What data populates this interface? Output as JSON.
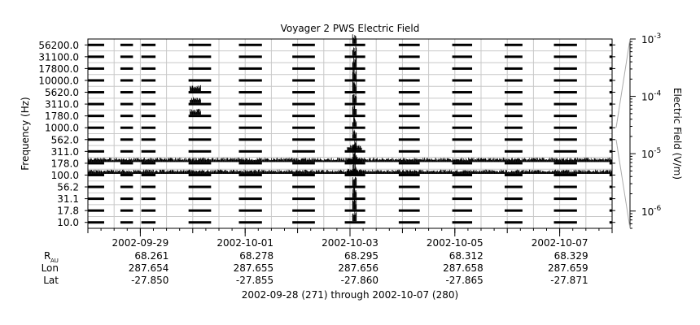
{
  "chart_data": {
    "type": "heatmap",
    "title": "Voyager 2 PWS Electric Field",
    "ylabel": "Frequency (Hz)",
    "colorbar_label": "Electric Field (V/m)",
    "colorbar_scale": "log",
    "colorbar_range": [
      5e-07,
      0.001
    ],
    "colorbar_ticks": [
      {
        "value": 0.001,
        "mant": "10",
        "exp": "-3"
      },
      {
        "value": 0.0001,
        "mant": "10",
        "exp": "-4"
      },
      {
        "value": 1e-05,
        "mant": "10",
        "exp": "-5"
      },
      {
        "value": 1e-06,
        "mant": "10",
        "exp": "-6"
      }
    ],
    "frequency_channels": [
      "10.0",
      "17.8",
      "31.1",
      "56.2",
      "100.0",
      "178.0",
      "311.0",
      "562.0",
      "1000.0",
      "1780.0",
      "3110.0",
      "5620.0",
      "10000.0",
      "17800.0",
      "31100.0",
      "56200.0"
    ],
    "x_range_days": [
      271,
      281
    ],
    "x_major_ticks": [
      {
        "day": 272,
        "label": "2002-09-29"
      },
      {
        "day": 274,
        "label": "2002-10-01"
      },
      {
        "day": 276,
        "label": "2002-10-03"
      },
      {
        "day": 278,
        "label": "2002-10-05"
      },
      {
        "day": 280,
        "label": "2002-10-07"
      }
    ],
    "data_segments_days": [
      [
        271.0,
        271.31
      ],
      [
        271.62,
        271.86
      ],
      [
        272.02,
        272.29
      ],
      [
        272.92,
        273.35
      ],
      [
        273.88,
        274.32
      ],
      [
        274.9,
        275.33
      ],
      [
        275.9,
        276.29
      ],
      [
        276.93,
        277.33
      ],
      [
        277.95,
        278.33
      ],
      [
        278.95,
        279.29
      ],
      [
        279.89,
        280.33
      ],
      [
        280.95,
        281.0
      ]
    ],
    "activity": [
      {
        "day_start": 276.05,
        "day_end": 276.12,
        "freq_from": "10.0",
        "freq_to": "56200.0",
        "level": 0.0008
      },
      {
        "day_start": 272.95,
        "day_end": 273.15,
        "freq_from": "1780.0",
        "freq_to": "5620.0",
        "level": 2e-05
      },
      {
        "day_start": 275.95,
        "day_end": 276.22,
        "freq_from": "100.0",
        "freq_to": "311.0",
        "level": 1e-05
      },
      {
        "day_start": 271.0,
        "day_end": 281.0,
        "freq_from": "100.0",
        "freq_to": "178.0",
        "level": 5e-06
      }
    ],
    "ephemeris_labels": [
      "R",
      "AU",
      "Lon",
      "Lat"
    ],
    "ephemeris": [
      {
        "R": "68.261",
        "Lon": "287.654",
        "Lat": "-27.850"
      },
      {
        "R": "68.278",
        "Lon": "287.655",
        "Lat": "-27.855"
      },
      {
        "R": "68.295",
        "Lon": "287.656",
        "Lat": "-27.860"
      },
      {
        "R": "68.312",
        "Lon": "287.658",
        "Lat": "-27.865"
      },
      {
        "R": "68.329",
        "Lon": "287.659",
        "Lat": "-27.871"
      }
    ],
    "time_range_text": "2002-09-28 (271) through 2002-10-07 (280)",
    "grid": true
  }
}
